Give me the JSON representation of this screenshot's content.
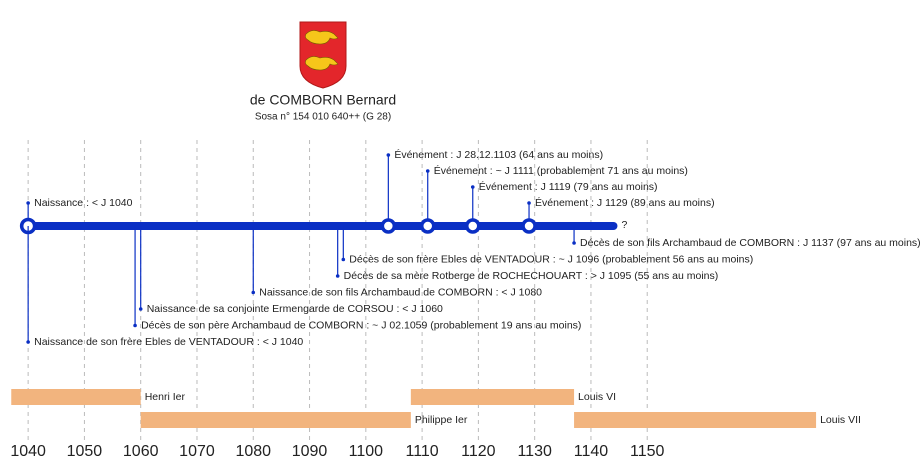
{
  "chart_data": {
    "type": "timeline",
    "name": "de COMBORN Bernard",
    "sosa": "Sosa n° 154 010 640++ (G 28)",
    "xlim": [
      1035,
      1199
    ],
    "xticks": [
      1040,
      1050,
      1060,
      1070,
      1080,
      1090,
      1100,
      1110,
      1120,
      1130,
      1140,
      1150
    ],
    "grid": true,
    "line_color": "#0a2fc4",
    "bar_color": "#f2b47e",
    "lifeline": [
      1040,
      1144
    ],
    "lifeline_end_label": "?",
    "birth": {
      "year": 1040,
      "label": "Naissance : < J 1040"
    },
    "events_above": [
      {
        "year": 1129,
        "label": "Événement : J 1129 (89 ans au moins)"
      },
      {
        "year": 1119,
        "label": "Événement : J 1119 (79 ans au moins)"
      },
      {
        "year": 1111,
        "label": "Événement : ~ J 1111 (probablement 71 ans au moins)"
      },
      {
        "year": 1104,
        "label": "Événement : J 28.12.1103 (64 ans au moins)"
      }
    ],
    "events_below": [
      {
        "year": 1137,
        "label": "Décès de son fils Archambaud de COMBORN : J 1137 (97 ans au moins)"
      },
      {
        "year": 1096,
        "label": "Décès de son frère Ebles de VENTADOUR : ~ J 1096 (probablement 56 ans au moins)"
      },
      {
        "year": 1095,
        "label": "Décès de sa mère Rotberge de ROCHECHOUART : > J 1095 (55 ans au moins)"
      },
      {
        "year": 1080,
        "label": "Naissance de son fils Archambaud de COMBORN : < J 1080"
      },
      {
        "year": 1060,
        "label": "Naissance de sa conjointe Ermengarde de CORSOU : < J 1060"
      },
      {
        "year": 1059,
        "label": "Décès de son père Archambaud de COMBORN : ~ J 02.1059 (probablement 19 ans au moins)"
      },
      {
        "year": 1040,
        "label": "Naissance de son frère Ebles de VENTADOUR : < J 1040"
      }
    ],
    "reigns": [
      {
        "name": "Henri Ier",
        "start": 1037,
        "end": 1060
      },
      {
        "name": "Philippe Ier",
        "start": 1060,
        "end": 1108
      },
      {
        "name": "Louis VI",
        "start": 1108,
        "end": 1137
      },
      {
        "name": "Louis VII",
        "start": 1137,
        "end": 1180
      }
    ]
  }
}
